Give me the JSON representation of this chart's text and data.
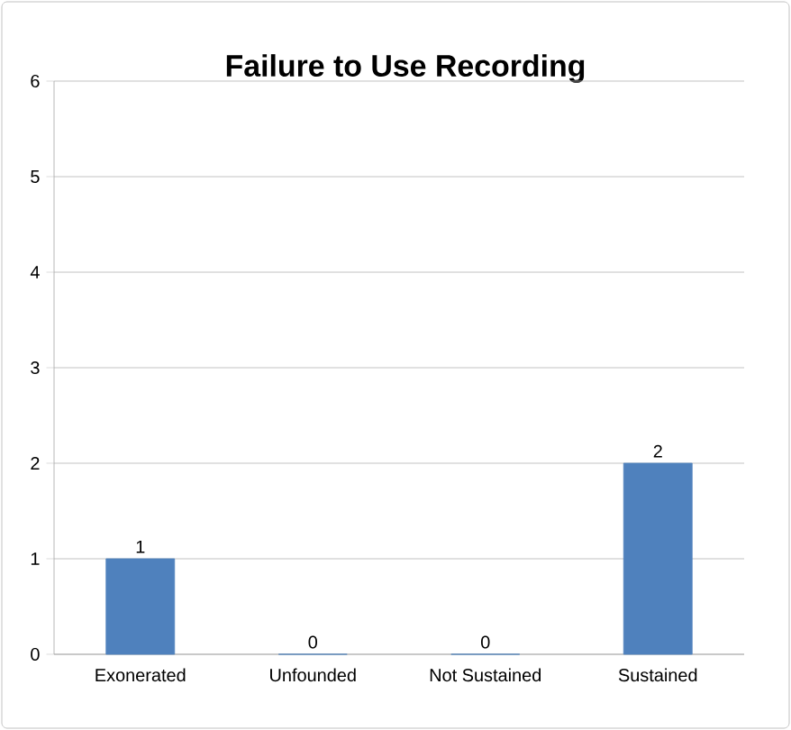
{
  "chart_data": {
    "type": "bar",
    "title": "Failure to Use Recording",
    "categories": [
      "Exonerated",
      "Unfounded",
      "Not Sustained",
      "Sustained"
    ],
    "values": [
      1,
      0,
      0,
      2
    ],
    "color": "#4f81bd",
    "ylim": [
      0,
      6
    ],
    "yticks": [
      0,
      1,
      2,
      3,
      4,
      5,
      6
    ],
    "grid": "y",
    "data_labels": true
  }
}
